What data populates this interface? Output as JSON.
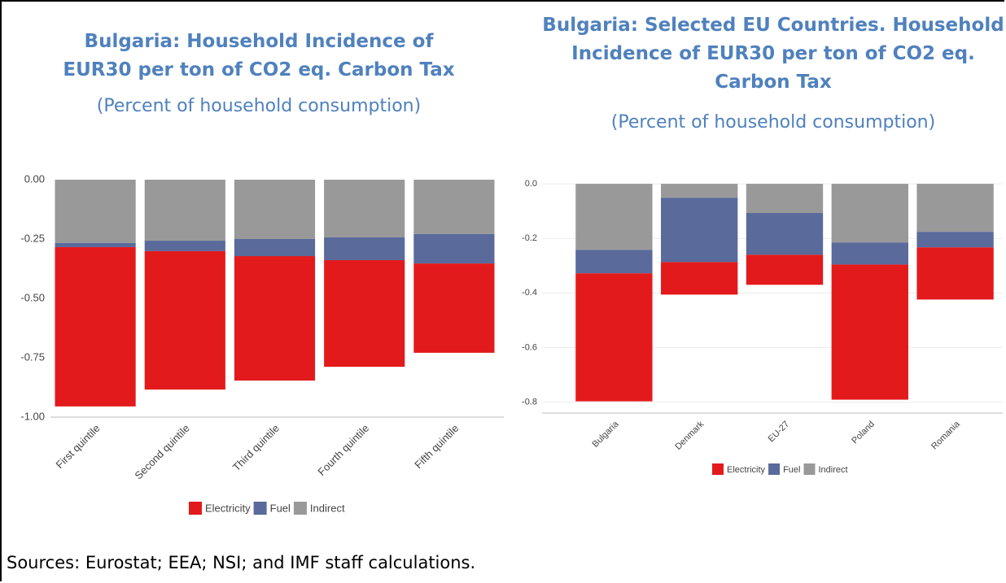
{
  "chart_data": [
    {
      "type": "stacked_bar",
      "title": "Bulgaria: Household Incidence of EUR30 per ton of CO2 eq. Carbon Tax",
      "subtitle": "(Percent of household consumption)",
      "categories": [
        "First quintile",
        "Second quintile",
        "Third quintile",
        "Fourth quintile",
        "Fifth quintile"
      ],
      "series": [
        {
          "name": "Electricity",
          "color": "#e31a1c",
          "values": [
            -0.671,
            -0.583,
            -0.524,
            -0.449,
            -0.376
          ]
        },
        {
          "name": "Fuel",
          "color": "#596a9b",
          "values": [
            -0.017,
            -0.044,
            -0.072,
            -0.096,
            -0.124
          ]
        },
        {
          "name": "Indirect",
          "color": "#999999",
          "values": [
            -0.267,
            -0.257,
            -0.25,
            -0.243,
            -0.229
          ]
        }
      ],
      "ylim": [
        -1.0,
        0.0
      ],
      "yticks": [
        {
          "value": 0,
          "label": "0.00"
        },
        -0.25,
        {
          "value": -0.5,
          "label": "-0.50"
        },
        -0.75,
        {
          "value": -1.0,
          "label": "-1.00"
        }
      ],
      "grid": false,
      "legend": "bottom"
    },
    {
      "type": "stacked_bar",
      "title": "Bulgaria: Selected EU Countries. Household Incidence of EUR30 per ton of CO2 eq. Carbon Tax",
      "subtitle": "(Percent of household consumption)",
      "categories": [
        "Bulgaria",
        "Denmark",
        "EU-27",
        "Poland",
        "Romania"
      ],
      "series": [
        {
          "name": "Electricity",
          "color": "#e31a1c",
          "values": [
            -0.469,
            -0.119,
            -0.11,
            -0.495,
            -0.191
          ]
        },
        {
          "name": "Fuel",
          "color": "#596a9b",
          "values": [
            -0.086,
            -0.236,
            -0.153,
            -0.081,
            -0.057
          ]
        },
        {
          "name": "Indirect",
          "color": "#999999",
          "values": [
            -0.242,
            -0.051,
            -0.107,
            -0.215,
            -0.176
          ]
        }
      ],
      "ylim": [
        -0.84,
        0.03
      ],
      "yticks": [
        {
          "value": 0,
          "label": "0.0"
        },
        -0.2,
        -0.4,
        -0.6,
        -0.8
      ],
      "grid": true,
      "legend": "bottom"
    }
  ],
  "footer": "Sources: Eurostat; EEA; NSI; and IMF staff calculations."
}
